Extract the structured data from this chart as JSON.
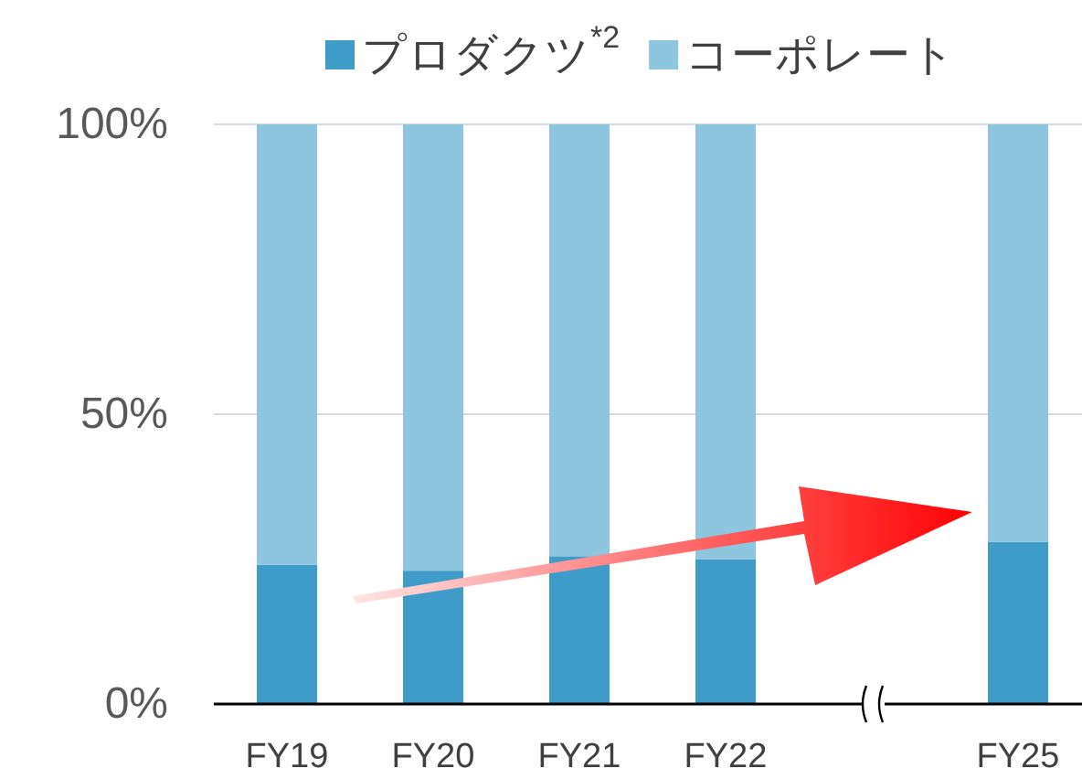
{
  "chart_data": {
    "type": "bar",
    "stacked": true,
    "categories": [
      "FY19",
      "FY20",
      "FY21",
      "FY22",
      null,
      "FY25"
    ],
    "series": [
      {
        "name": "プロダクツ$^{*2}$",
        "color": "#3f9bc8",
        "values": [
          24,
          23,
          25.5,
          25,
          null,
          28
        ]
      },
      {
        "name": "コーポレート",
        "color": "#8ec5df",
        "values": [
          76,
          77,
          74.5,
          75,
          null,
          72
        ]
      }
    ],
    "ylim": [
      0,
      100
    ],
    "yticks": [
      {
        "value": 0,
        "label": "0%"
      },
      {
        "value": 50,
        "label": "50%"
      },
      {
        "value": 100,
        "label": "100%"
      }
    ],
    "grid": "y",
    "legend": "top"
  }
}
